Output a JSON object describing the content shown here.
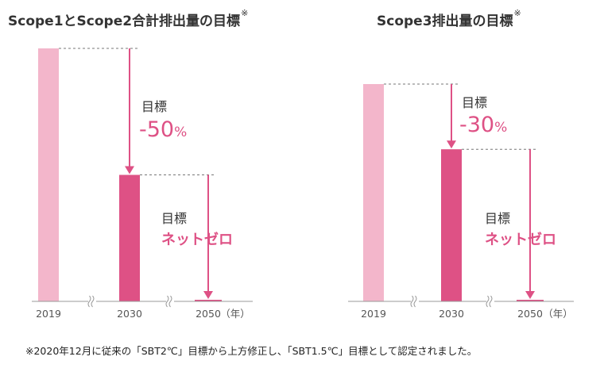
{
  "colors": {
    "bar_base": "#f3b6cb",
    "bar_mid": "#de5185",
    "arrow": "#de5185",
    "target_text": "#de5185",
    "label_text": "#333333",
    "axis": "#999999",
    "dash": "#777777"
  },
  "footnote": "※2020年12月に従来の「SBT2℃」目標から上方修正し、「SBT1.5℃」目標として認定されました。",
  "chart_data": [
    {
      "type": "bar",
      "title": "Scope1とScope2合計排出量の目標",
      "title_mark": "※",
      "categories": [
        "2019",
        "2030",
        "2050"
      ],
      "unit_label": "（年）",
      "values": [
        100,
        50,
        0
      ],
      "ylim": [
        0,
        100
      ],
      "annotations": [
        {
          "from": "2019",
          "to": "2030",
          "label": "目標",
          "value_text": "-50",
          "unit": "%"
        },
        {
          "from": "2030",
          "to": "2050",
          "label": "目標",
          "value_text": "ネットゼロ"
        }
      ]
    },
    {
      "type": "bar",
      "title": "Scope3排出量の目標",
      "title_mark": "※",
      "categories": [
        "2019",
        "2030",
        "2050"
      ],
      "unit_label": "（年）",
      "values": [
        100,
        70,
        0
      ],
      "ylim": [
        0,
        100
      ],
      "annotations": [
        {
          "from": "2019",
          "to": "2030",
          "label": "目標",
          "value_text": "-30",
          "unit": "%"
        },
        {
          "from": "2030",
          "to": "2050",
          "label": "目標",
          "value_text": "ネットゼロ"
        }
      ]
    }
  ]
}
